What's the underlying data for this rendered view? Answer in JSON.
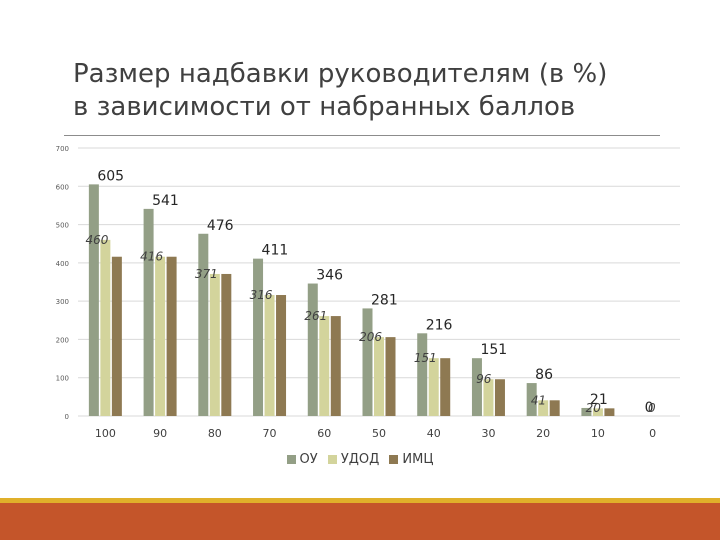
{
  "slide": {
    "title_line1": "Размер надбавки руководителям (в %)",
    "title_line2": "в зависимости от набранных баллов"
  },
  "chart_data": {
    "type": "bar",
    "title": "",
    "xlabel": "",
    "ylabel": "",
    "ylim": [
      0,
      700
    ],
    "yticks": [
      0,
      100,
      200,
      300,
      400,
      500,
      600,
      700
    ],
    "categories": [
      "100",
      "90",
      "80",
      "70",
      "60",
      "50",
      "40",
      "30",
      "20",
      "10",
      "0"
    ],
    "series": [
      {
        "name": "ОУ",
        "color": "#939f86",
        "values": [
          605,
          541,
          476,
          411,
          346,
          281,
          216,
          151,
          86,
          21,
          0
        ]
      },
      {
        "name": "УДОД",
        "color": "#d3d49c",
        "values": [
          460,
          416,
          371,
          316,
          261,
          206,
          151,
          96,
          41,
          20,
          0
        ]
      },
      {
        "name": "ИМЦ",
        "color": "#8e7952",
        "values": [
          416,
          416,
          371,
          316,
          261,
          206,
          151,
          96,
          41,
          20,
          0
        ]
      }
    ],
    "data_labels": {
      "ОУ": [
        "605",
        "541",
        "476",
        "411",
        "346",
        "281",
        "216",
        "151",
        "86",
        "21",
        "0"
      ],
      "УДОД": [
        "460",
        "416",
        "371",
        "316",
        "261",
        "206",
        "151",
        "96",
        "41",
        "20",
        "0"
      ]
    },
    "grid": true,
    "legend": "bottom"
  },
  "footer": {
    "accent": "#e0b02a",
    "band": "#c4552a"
  }
}
